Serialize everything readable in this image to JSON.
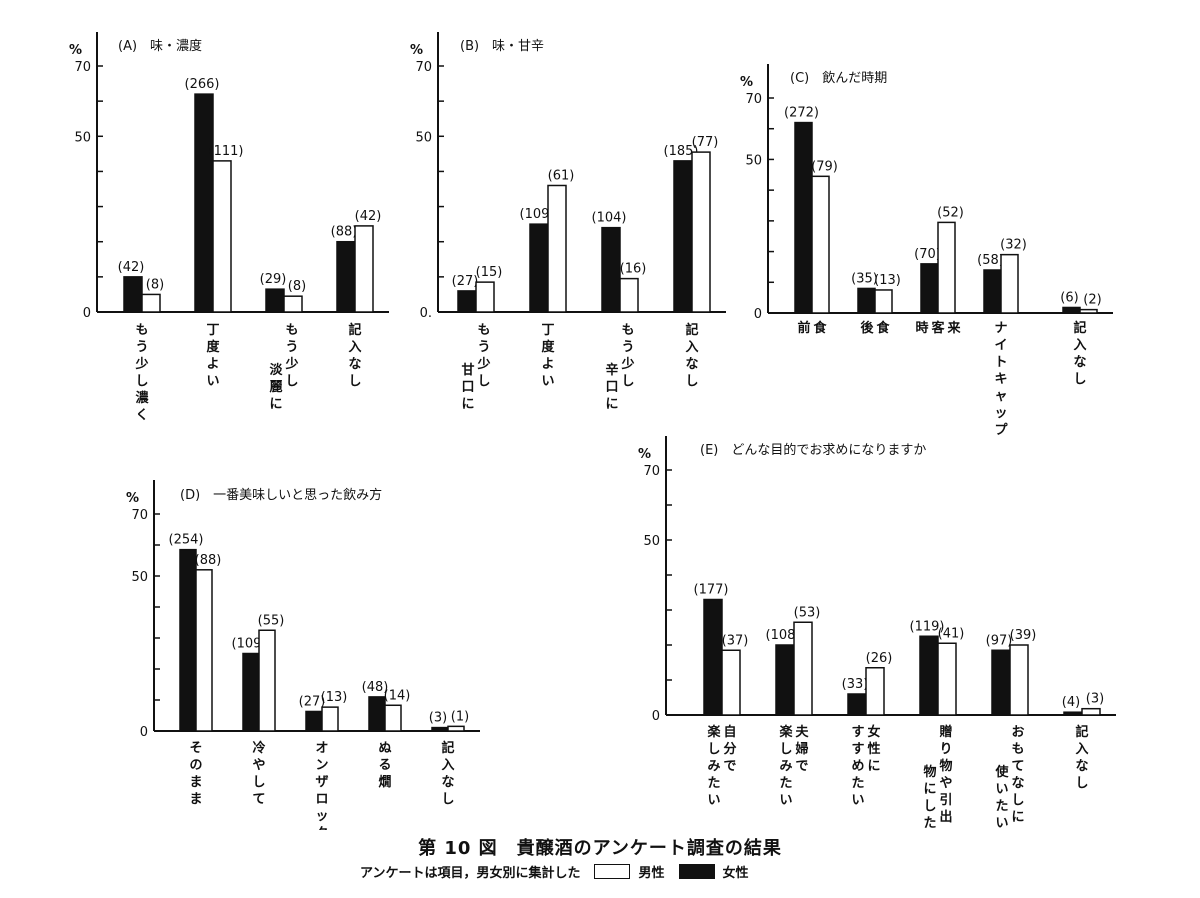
{
  "figure": {
    "title": "第 10 図　貴醸酒のアンケート調査の結果",
    "note": "アンケートは項目，男女別に集計した",
    "legend": {
      "male": "男性",
      "female": "女性"
    }
  },
  "colors": {
    "female": "#111111",
    "male": "#ffffff",
    "ink": "#111111"
  },
  "chart_data": [
    {
      "id": "A",
      "type": "bar",
      "title": "(A)　味・濃度",
      "unit": "%",
      "ylim": [
        0,
        70
      ],
      "yticks_labeled": [
        "0",
        "50",
        "70"
      ],
      "zero_label": "0",
      "categories": [
        "もう少し濃く",
        "丁度よい",
        "もう少し|淡麗に",
        "記入なし"
      ],
      "series": [
        {
          "name": "女性",
          "values": [
            10,
            62,
            6.5,
            20
          ],
          "labels": [
            "(42)",
            "(266)",
            "(29)",
            "(88)"
          ]
        },
        {
          "name": "男性",
          "values": [
            5,
            43,
            4.5,
            24.5
          ],
          "labels": [
            "(8)",
            "(111)",
            "(8)",
            "(42)"
          ]
        }
      ]
    },
    {
      "id": "B",
      "type": "bar",
      "title": "(B)　味・甘辛",
      "unit": "%",
      "ylim": [
        0,
        70
      ],
      "yticks_labeled": [
        "0.",
        "50",
        "70"
      ],
      "zero_label": "0.",
      "categories": [
        "もう少し|甘口に",
        "丁度よい",
        "もう少し|辛口に",
        "記入なし"
      ],
      "series": [
        {
          "name": "女性",
          "values": [
            6,
            25,
            24,
            43
          ],
          "labels": [
            "(27)",
            "(109)",
            "(104)",
            "(185)"
          ]
        },
        {
          "name": "男性",
          "values": [
            8.5,
            36,
            9.5,
            45.5
          ],
          "labels": [
            "(15)",
            "(61)",
            "(16)",
            "(77)"
          ]
        }
      ]
    },
    {
      "id": "C",
      "type": "bar",
      "title": "(C)　飲んだ時期",
      "unit": "%",
      "ylim": [
        0,
        70
      ],
      "yticks_labeled": [
        "0",
        "50",
        "70"
      ],
      "zero_label": "0",
      "categories": [
        "食|前",
        "食|後",
        "来|客|時",
        "ナイトキャップ",
        "記入なし"
      ],
      "series": [
        {
          "name": "女性",
          "values": [
            62,
            8,
            16,
            14,
            1.8
          ],
          "labels": [
            "(272)",
            "(35)",
            "(70)",
            "(58)",
            "(6)"
          ]
        },
        {
          "name": "男性",
          "values": [
            44.5,
            7.5,
            29.5,
            19,
            1.1
          ],
          "labels": [
            "(79)",
            "(13)",
            "(52)",
            "(32)",
            "(2)"
          ]
        }
      ]
    },
    {
      "id": "D",
      "type": "bar",
      "title": "(D)　一番美味しいと思った飲み方",
      "unit": "%",
      "ylim": [
        0,
        70
      ],
      "yticks_labeled": [
        "0",
        "50",
        "70"
      ],
      "zero_label": "0",
      "categories": [
        "そのまま",
        "冷やして",
        "オンザロック",
        "ぬる燗",
        "記入なし"
      ],
      "series": [
        {
          "name": "女性",
          "values": [
            58.5,
            25,
            6.3,
            11,
            1.1
          ],
          "labels": [
            "(254)",
            "(109)",
            "(27)",
            "(48)",
            "(3)"
          ]
        },
        {
          "name": "男性",
          "values": [
            52,
            32.5,
            7.7,
            8.3,
            1.5
          ],
          "labels": [
            "(88)",
            "(55)",
            "(13)",
            "(14)",
            "(1)"
          ]
        }
      ]
    },
    {
      "id": "E",
      "type": "bar",
      "title": "(E)　どんな目的でお求めになりますか",
      "unit": "%",
      "ylim": [
        0,
        70
      ],
      "yticks_labeled": [
        "0",
        "50",
        "70"
      ],
      "zero_label": "0",
      "categories": [
        "自分で|楽しみたい",
        "夫婦で|楽しみたい",
        "女性に|すすめたい",
        "贈り物や引出|物にしたい",
        "おもてなしに|使いたい",
        "記入なし"
      ],
      "series": [
        {
          "name": "女性",
          "values": [
            33,
            20,
            6,
            22.5,
            18.5,
            0.8
          ],
          "labels": [
            "(177)",
            "(108)",
            "(33)",
            "(119)",
            "(97)",
            "(4)"
          ]
        },
        {
          "name": "男性",
          "values": [
            18.5,
            26.5,
            13.5,
            20.5,
            20,
            1.8
          ],
          "labels": [
            "(37)",
            "(53)",
            "(26)",
            "(41)",
            "(39)",
            "(3)"
          ]
        }
      ]
    }
  ]
}
